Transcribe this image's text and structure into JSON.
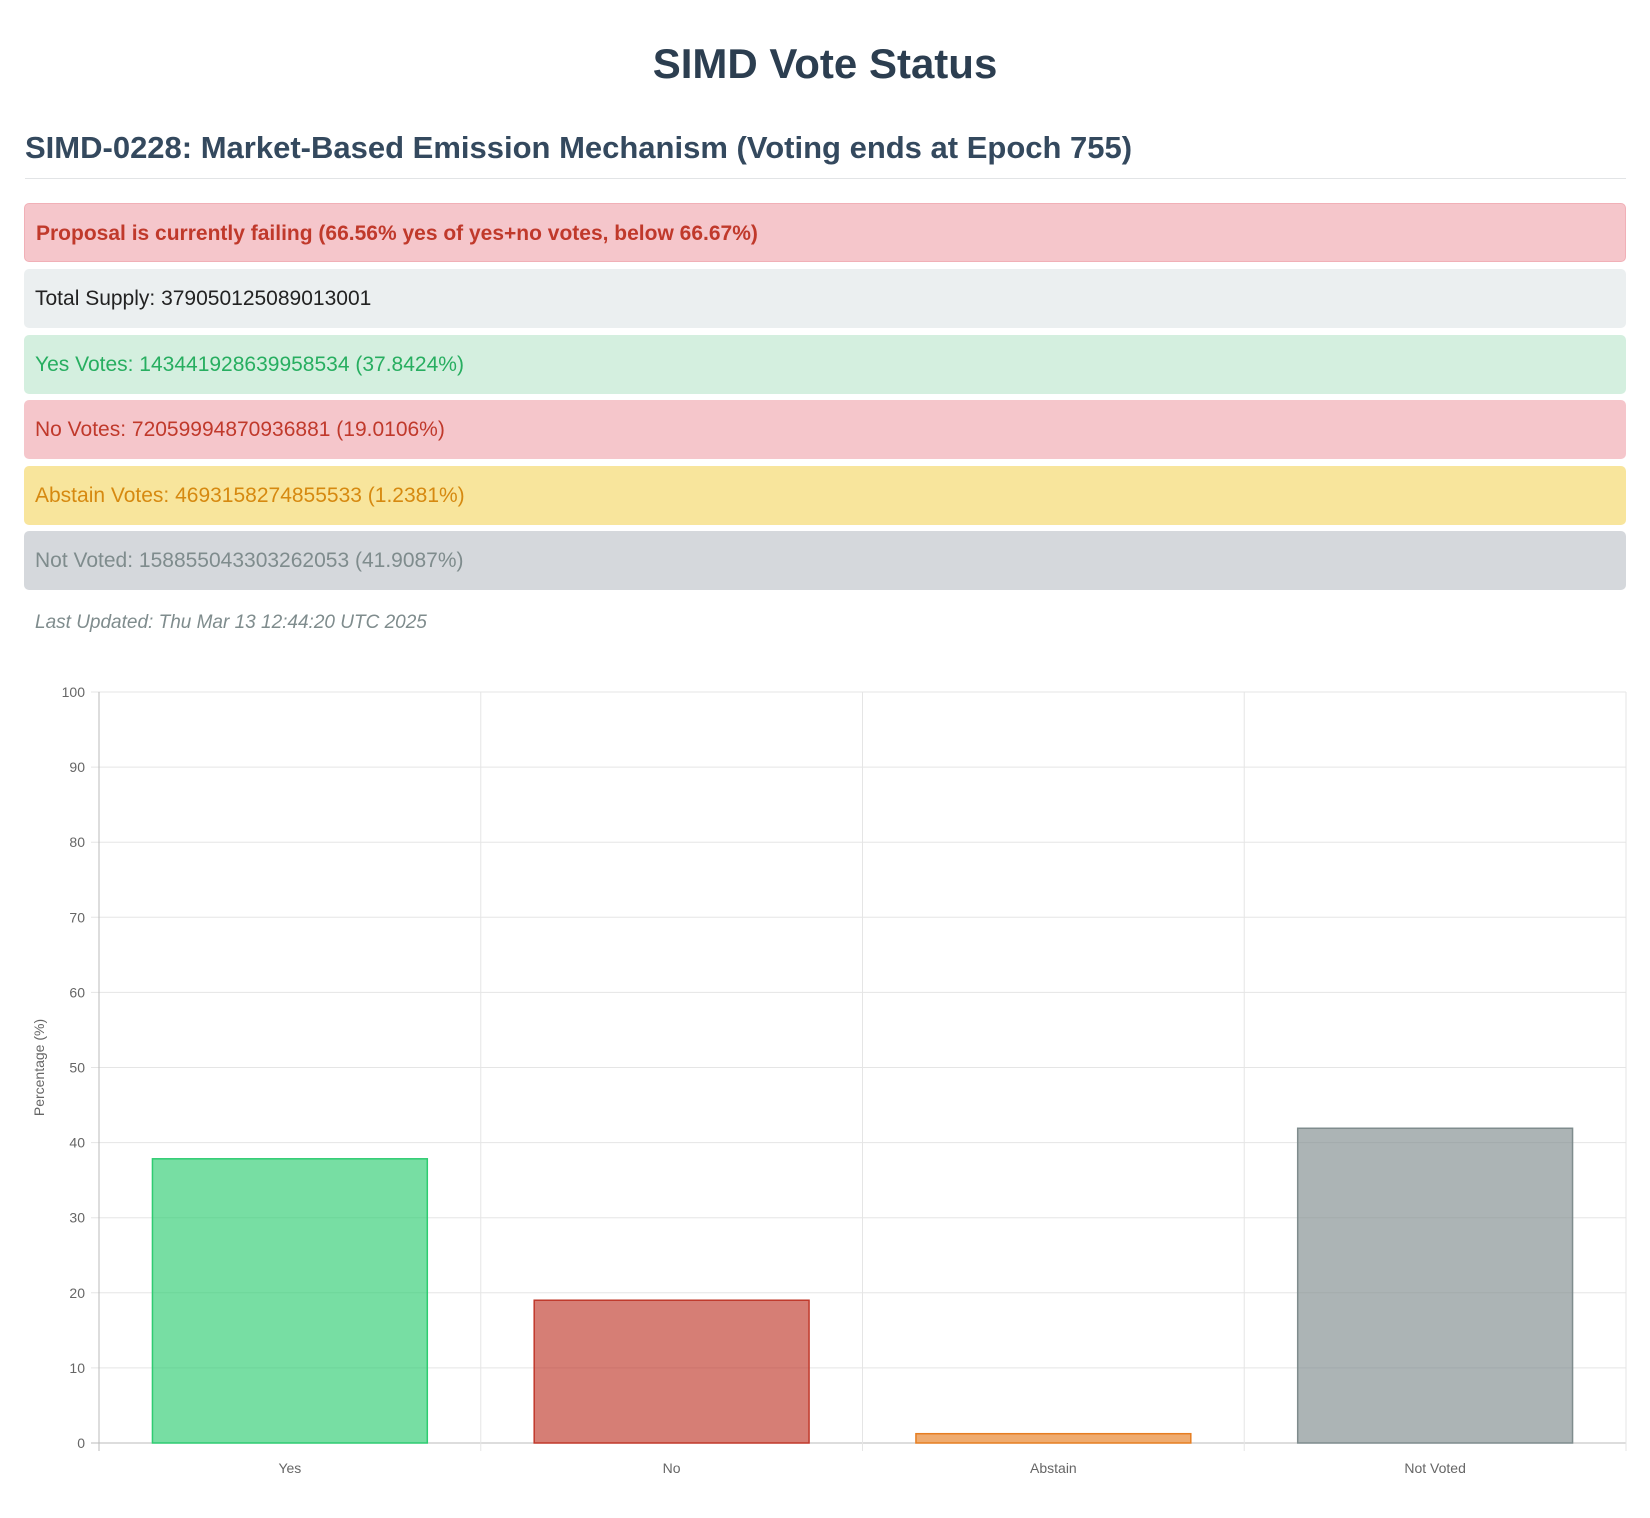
{
  "header": {
    "title": "SIMD Vote Status",
    "subtitle": "SIMD-0228: Market-Based Emission Mechanism (Voting ends at Epoch 755)"
  },
  "status": {
    "message": "Proposal is currently failing (66.56% yes of yes+no votes, below 66.67%)",
    "rows": [
      "Total Supply: 379050125089013001",
      "Yes Votes: 143441928639958534 (37.8424%)",
      "No Votes: 72059994870936881 (19.0106%)",
      "Abstain Votes: 4693158274855533 (1.2381%)",
      "Not Voted: 158855043303262053 (41.9087%)"
    ],
    "last_updated": "Last Updated: Thu Mar 13 12:44:20 UTC 2025"
  },
  "chart_data": {
    "type": "bar",
    "categories": [
      "Yes",
      "No",
      "Abstain",
      "Not Voted"
    ],
    "values": [
      37.8424,
      19.0106,
      1.2381,
      41.9087
    ],
    "colors": [
      "#2ecc71",
      "#c0392b",
      "#e67e22",
      "#7f8c8d"
    ],
    "ylabel": "Percentage (%)",
    "ylim": [
      0,
      100
    ],
    "yticks": [
      0,
      10,
      20,
      30,
      40,
      50,
      60,
      70,
      80,
      90,
      100
    ],
    "grid": true
  }
}
